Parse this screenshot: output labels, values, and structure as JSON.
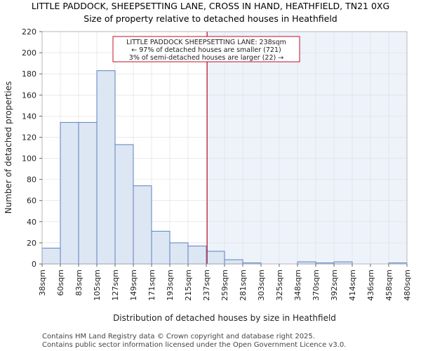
{
  "chart_data": {
    "type": "bar",
    "title_line1": "LITTLE PADDOCK, SHEEPSETTING LANE, CROSS IN HAND, HEATHFIELD, TN21 0XG",
    "title_line2": "Size of property relative to detached houses in Heathfield",
    "xlabel": "Distribution of detached houses by size in Heathfield",
    "ylabel": "Number of detached properties",
    "ylim": [
      0,
      220
    ],
    "yticks": [
      0,
      20,
      40,
      60,
      80,
      100,
      120,
      140,
      160,
      180,
      200,
      220
    ],
    "bin_edges": [
      38,
      60,
      83,
      105,
      127,
      149,
      171,
      193,
      215,
      237,
      259,
      281,
      303,
      325,
      348,
      370,
      392,
      414,
      436,
      458,
      480
    ],
    "tick_labels": [
      "38sqm",
      "60sqm",
      "83sqm",
      "105sqm",
      "127sqm",
      "149sqm",
      "171sqm",
      "193sqm",
      "215sqm",
      "237sqm",
      "259sqm",
      "281sqm",
      "303sqm",
      "325sqm",
      "348sqm",
      "370sqm",
      "392sqm",
      "414sqm",
      "436sqm",
      "458sqm",
      "480sqm"
    ],
    "values": [
      15,
      134,
      134,
      183,
      113,
      74,
      31,
      20,
      17,
      12,
      4,
      1,
      0,
      0,
      2,
      1,
      2,
      0,
      0,
      1
    ],
    "marker_value": 238,
    "annotation": {
      "line1": "LITTLE PADDOCK SHEEPSETTING LANE: 238sqm",
      "line2": "← 97% of detached houses are smaller (721)",
      "line3": "3% of semi-detached houses are larger (22) →"
    },
    "colors": {
      "bar_fill": "#dde6f3",
      "bar_stroke": "#5a82c0",
      "marker": "#c0102a",
      "shade": "#eef2fa",
      "grid": "#dddddd"
    }
  },
  "footer": {
    "line1": "Contains HM Land Registry data © Crown copyright and database right 2025.",
    "line2": "Contains public sector information licensed under the Open Government Licence v3.0."
  }
}
